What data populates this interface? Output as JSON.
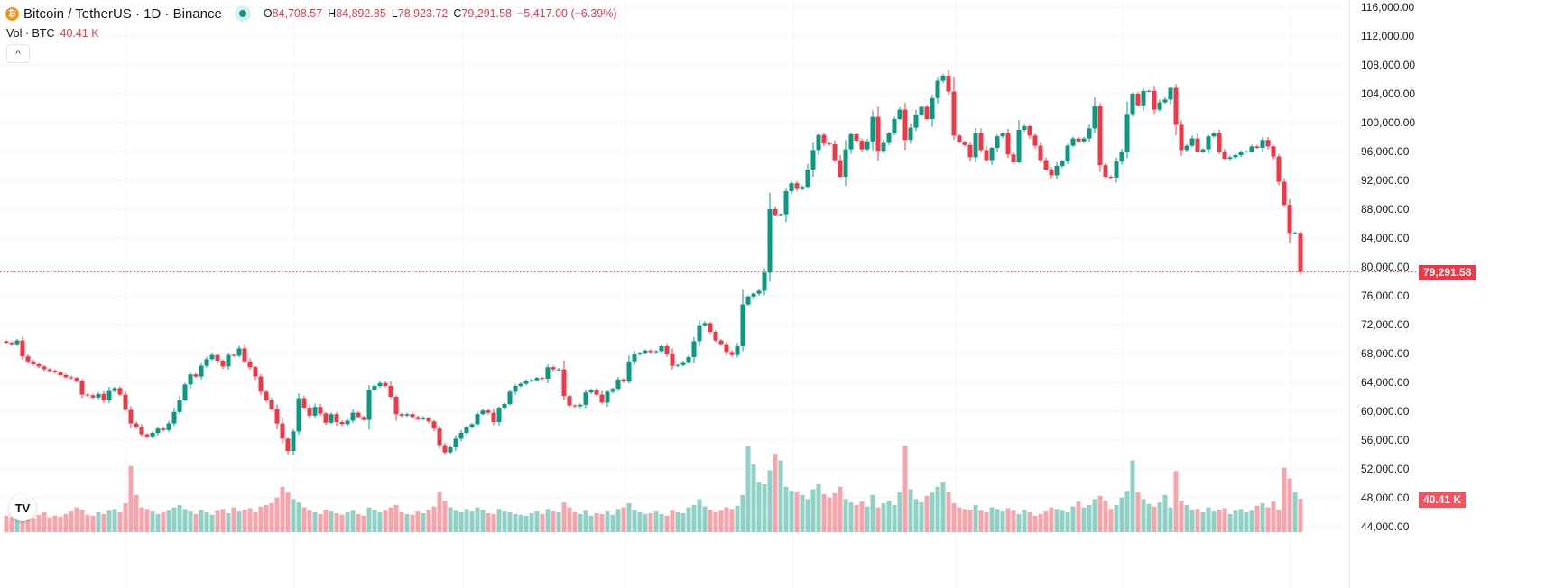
{
  "header": {
    "symbol_title": "Bitcoin / TetherUS · 1D · Binance",
    "coin_icon": "bitcoin-icon",
    "open_label": "O",
    "open": "84,708.57",
    "high_label": "H",
    "high": "84,892.85",
    "low_label": "L",
    "low": "78,923.72",
    "close_label": "C",
    "close": "79,291.58",
    "change": "−5,417.00 (−6.39%)",
    "volume_label": "Vol · BTC",
    "volume_value": "40.41 K",
    "collapse_icon": "chevron-up-icon"
  },
  "price_axis": {
    "last_price_label": "79,291.58",
    "last_volume_label": "40.41 K"
  },
  "colors": {
    "up": "#089981",
    "down": "#f23645",
    "grid": "#f0f3fa"
  },
  "chart_data": {
    "type": "candlestick",
    "title": "Bitcoin / TetherUS · 1D · Binance",
    "ylim": [
      44000,
      116000
    ],
    "y_ticks": [
      "116,000.00",
      "112,000.00",
      "108,000.00",
      "104,000.00",
      "100,000.00",
      "96,000.00",
      "92,000.00",
      "88,000.00",
      "84,000.00",
      "80,000.00",
      "76,000.00",
      "72,000.00",
      "68,000.00",
      "64,000.00",
      "60,000.00",
      "56,000.00",
      "52,000.00",
      "48,000.00",
      "44,000.00"
    ],
    "y_tick_values": [
      116000,
      112000,
      108000,
      104000,
      100000,
      96000,
      92000,
      88000,
      84000,
      80000,
      76000,
      72000,
      68000,
      64000,
      60000,
      56000,
      52000,
      48000,
      44000
    ],
    "grid": true,
    "last_candle": {
      "open": 84708.57,
      "high": 84892.85,
      "low": 78923.72,
      "close": 79291.58,
      "volume": 40410
    },
    "close": [
      69500,
      69300,
      69800,
      67600,
      66900,
      66500,
      66200,
      65800,
      65600,
      65400,
      65000,
      64700,
      64600,
      64200,
      62300,
      62200,
      61900,
      62400,
      61500,
      62800,
      63200,
      62300,
      60200,
      58300,
      57800,
      56800,
      56400,
      57000,
      57600,
      57400,
      58300,
      59900,
      61500,
      63700,
      65100,
      64800,
      66300,
      67200,
      67800,
      67000,
      66200,
      67800,
      67700,
      68700,
      66900,
      66100,
      64800,
      62700,
      61500,
      60300,
      58300,
      56200,
      54500,
      57200,
      61800,
      60500,
      59400,
      60600,
      59700,
      58400,
      59600,
      58500,
      58200,
      58700,
      59800,
      59200,
      58800,
      63000,
      63500,
      63900,
      63500,
      62000,
      59600,
      59400,
      59600,
      59200,
      58900,
      59100,
      58600,
      57600,
      55300,
      54300,
      55000,
      56200,
      57000,
      57800,
      58200,
      59600,
      60100,
      59800,
      58500,
      60500,
      61000,
      62700,
      63500,
      63800,
      64200,
      64300,
      64600,
      64500,
      66100,
      65800,
      65800,
      62100,
      60800,
      60700,
      60900,
      62600,
      62900,
      62300,
      61200,
      62700,
      63100,
      64400,
      64100,
      66900,
      67900,
      68100,
      68400,
      68200,
      68300,
      69000,
      68000,
      66300,
      66400,
      66800,
      67500,
      69700,
      71900,
      72200,
      71000,
      69800,
      69300,
      68200,
      67800,
      69000,
      74800,
      75900,
      76300,
      76700,
      79200,
      88000,
      87200,
      87300,
      90500,
      91600,
      90800,
      91100,
      93500,
      96200,
      98300,
      97100,
      97000,
      94800,
      92500,
      96300,
      98400,
      97500,
      96300,
      97400,
      100800,
      96100,
      97200,
      98500,
      100500,
      101800,
      97600,
      99300,
      101100,
      102200,
      100500,
      103400,
      105800,
      106500,
      104300,
      98200,
      97300,
      96900,
      95200,
      98500,
      96200,
      94800,
      96500,
      98100,
      98500,
      95600,
      94500,
      99000,
      99500,
      98200,
      96800,
      94800,
      93500,
      92700,
      94000,
      94700,
      96800,
      97800,
      97400,
      97800,
      99200,
      102300,
      94100,
      92500,
      92400,
      94600,
      95900,
      101200,
      104000,
      102400,
      104400,
      104400,
      101800,
      102800,
      103200,
      104800,
      99700,
      96200,
      96800,
      97800,
      96000,
      96300,
      98100,
      98500,
      96000,
      95000,
      95200,
      95500,
      96000,
      96000,
      96700,
      96500,
      97600,
      96700,
      95300,
      91800,
      88600,
      84700,
      84708.57,
      79291.58
    ],
    "volume": [
      20000,
      18000,
      22000,
      25000,
      19000,
      17000,
      21000,
      24000,
      18000,
      20000,
      19000,
      22000,
      25000,
      30000,
      27000,
      21000,
      20000,
      24000,
      22000,
      26000,
      28000,
      24000,
      35000,
      80000,
      45000,
      30000,
      28000,
      25000,
      22000,
      24000,
      26000,
      30000,
      33000,
      28000,
      25000,
      22000,
      27000,
      24000,
      21000,
      26000,
      28000,
      23000,
      30000,
      25000,
      27000,
      29000,
      24000,
      31000,
      33000,
      35000,
      42000,
      55000,
      48000,
      40000,
      36000,
      30000,
      26000,
      24000,
      22000,
      27000,
      25000,
      23000,
      21000,
      24000,
      26000,
      22000,
      20000,
      30000,
      27000,
      24000,
      26000,
      30000,
      33000,
      24000,
      22000,
      21000,
      25000,
      23000,
      27000,
      31000,
      49000,
      38000,
      30000,
      26000,
      24000,
      28000,
      25000,
      30000,
      27000,
      23000,
      22000,
      28000,
      25000,
      24000,
      22000,
      21000,
      20000,
      23000,
      25000,
      22000,
      28000,
      25000,
      24000,
      36000,
      30000,
      24000,
      22000,
      26000,
      20000,
      23000,
      22000,
      25000,
      21000,
      28000,
      30000,
      35000,
      27000,
      24000,
      22000,
      23000,
      25000,
      22000,
      20000,
      26000,
      24000,
      23000,
      30000,
      33000,
      40000,
      31000,
      27000,
      24000,
      26000,
      30000,
      28000,
      32000,
      45000,
      104000,
      82000,
      60000,
      58000,
      75000,
      95000,
      87000,
      55000,
      50000,
      48000,
      45000,
      40000,
      52000,
      58000,
      46000,
      42000,
      47000,
      55000,
      40000,
      36000,
      33000,
      37000,
      31000,
      45000,
      30000,
      35000,
      38000,
      33000,
      48000,
      105000,
      52000,
      40000,
      36000,
      44000,
      48000,
      55000,
      60000,
      49000,
      35000,
      30000,
      28000,
      27000,
      33000,
      26000,
      24000,
      30000,
      28000,
      25000,
      29000,
      26000,
      22000,
      27000,
      24000,
      20000,
      22000,
      25000,
      30000,
      28000,
      26000,
      24000,
      31000,
      37000,
      30000,
      33000,
      40000,
      44000,
      38000,
      28000,
      33000,
      42000,
      50000,
      87000,
      48000,
      40000,
      34000,
      31000,
      36000,
      45000,
      30000,
      74000,
      38000,
      33000,
      27000,
      28000,
      24000,
      30000,
      25000,
      27000,
      29000,
      22000,
      26000,
      28000,
      24000,
      26000,
      32000,
      35000,
      30000,
      37000,
      27000,
      78000,
      65000,
      48000,
      40410
    ]
  }
}
